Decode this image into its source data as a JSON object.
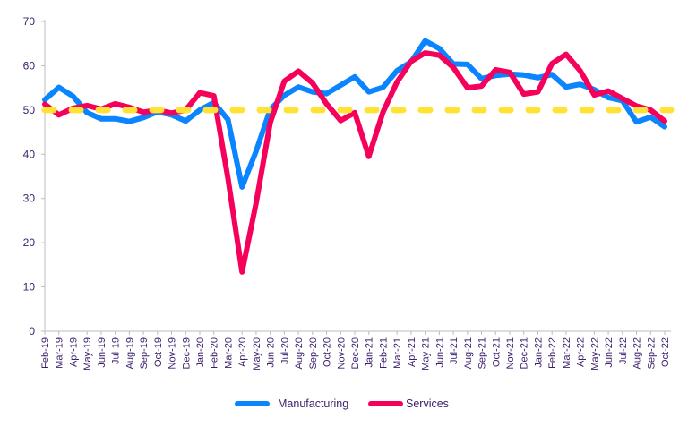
{
  "chart_data": {
    "type": "line",
    "title": "",
    "xlabel": "",
    "ylabel": "",
    "ylim": [
      0,
      70
    ],
    "yticks": [
      0,
      10,
      20,
      30,
      40,
      50,
      60,
      70
    ],
    "grid": false,
    "legend_placement": "bottom",
    "categories": [
      "Feb-19",
      "Mar-19",
      "Apr-19",
      "May-19",
      "Jun-19",
      "Jul-19",
      "Aug-19",
      "Sep-19",
      "Oct-19",
      "Nov-19",
      "Dec-19",
      "Jan-20",
      "Feb-20",
      "Mar-20",
      "Apr-20",
      "May-20",
      "Jun-20",
      "Jul-20",
      "Aug-20",
      "Sep-20",
      "Oct-20",
      "Nov-20",
      "Dec-20",
      "Jan-21",
      "Feb-21",
      "Mar-21",
      "Apr-21",
      "May-21",
      "Jun-21",
      "Jul-21",
      "Aug-21",
      "Sep-21",
      "Oct-21",
      "Nov-21",
      "Dec-21",
      "Jan-22",
      "Feb-22",
      "Mar-22",
      "Apr-22",
      "May-22",
      "Jun-22",
      "Jul-22",
      "Aug-22",
      "Sep-22",
      "Oct-22"
    ],
    "series": [
      {
        "name": "Manufacturing",
        "color": "#0a84ff",
        "values": [
          52.3,
          55.1,
          53.1,
          49.4,
          48.0,
          48.0,
          47.4,
          48.3,
          49.6,
          48.9,
          47.5,
          50.0,
          51.7,
          47.8,
          32.6,
          40.7,
          50.1,
          53.3,
          55.2,
          54.1,
          53.7,
          55.6,
          57.5,
          54.1,
          55.1,
          58.9,
          60.9,
          65.6,
          63.9,
          60.4,
          60.3,
          57.1,
          57.8,
          58.1,
          57.9,
          57.3,
          58.0,
          55.2,
          55.8,
          54.6,
          52.8,
          52.1,
          47.3,
          48.4,
          46.2
        ]
      },
      {
        "name": "Services",
        "color": "#f5005a",
        "values": [
          51.3,
          48.9,
          50.4,
          51.0,
          50.2,
          51.4,
          50.6,
          49.5,
          50.0,
          49.3,
          50.0,
          53.9,
          53.2,
          34.5,
          13.4,
          29.0,
          47.1,
          56.5,
          58.8,
          56.1,
          51.4,
          47.6,
          49.4,
          39.5,
          49.5,
          56.3,
          61.0,
          62.9,
          62.4,
          59.6,
          55.0,
          55.4,
          59.1,
          58.5,
          53.6,
          54.1,
          60.5,
          62.6,
          58.9,
          53.4,
          54.3,
          52.6,
          50.9,
          50.0,
          47.5
        ]
      }
    ],
    "reference_line": {
      "value": 50,
      "color": "#ffe234",
      "style": "dashed"
    }
  }
}
